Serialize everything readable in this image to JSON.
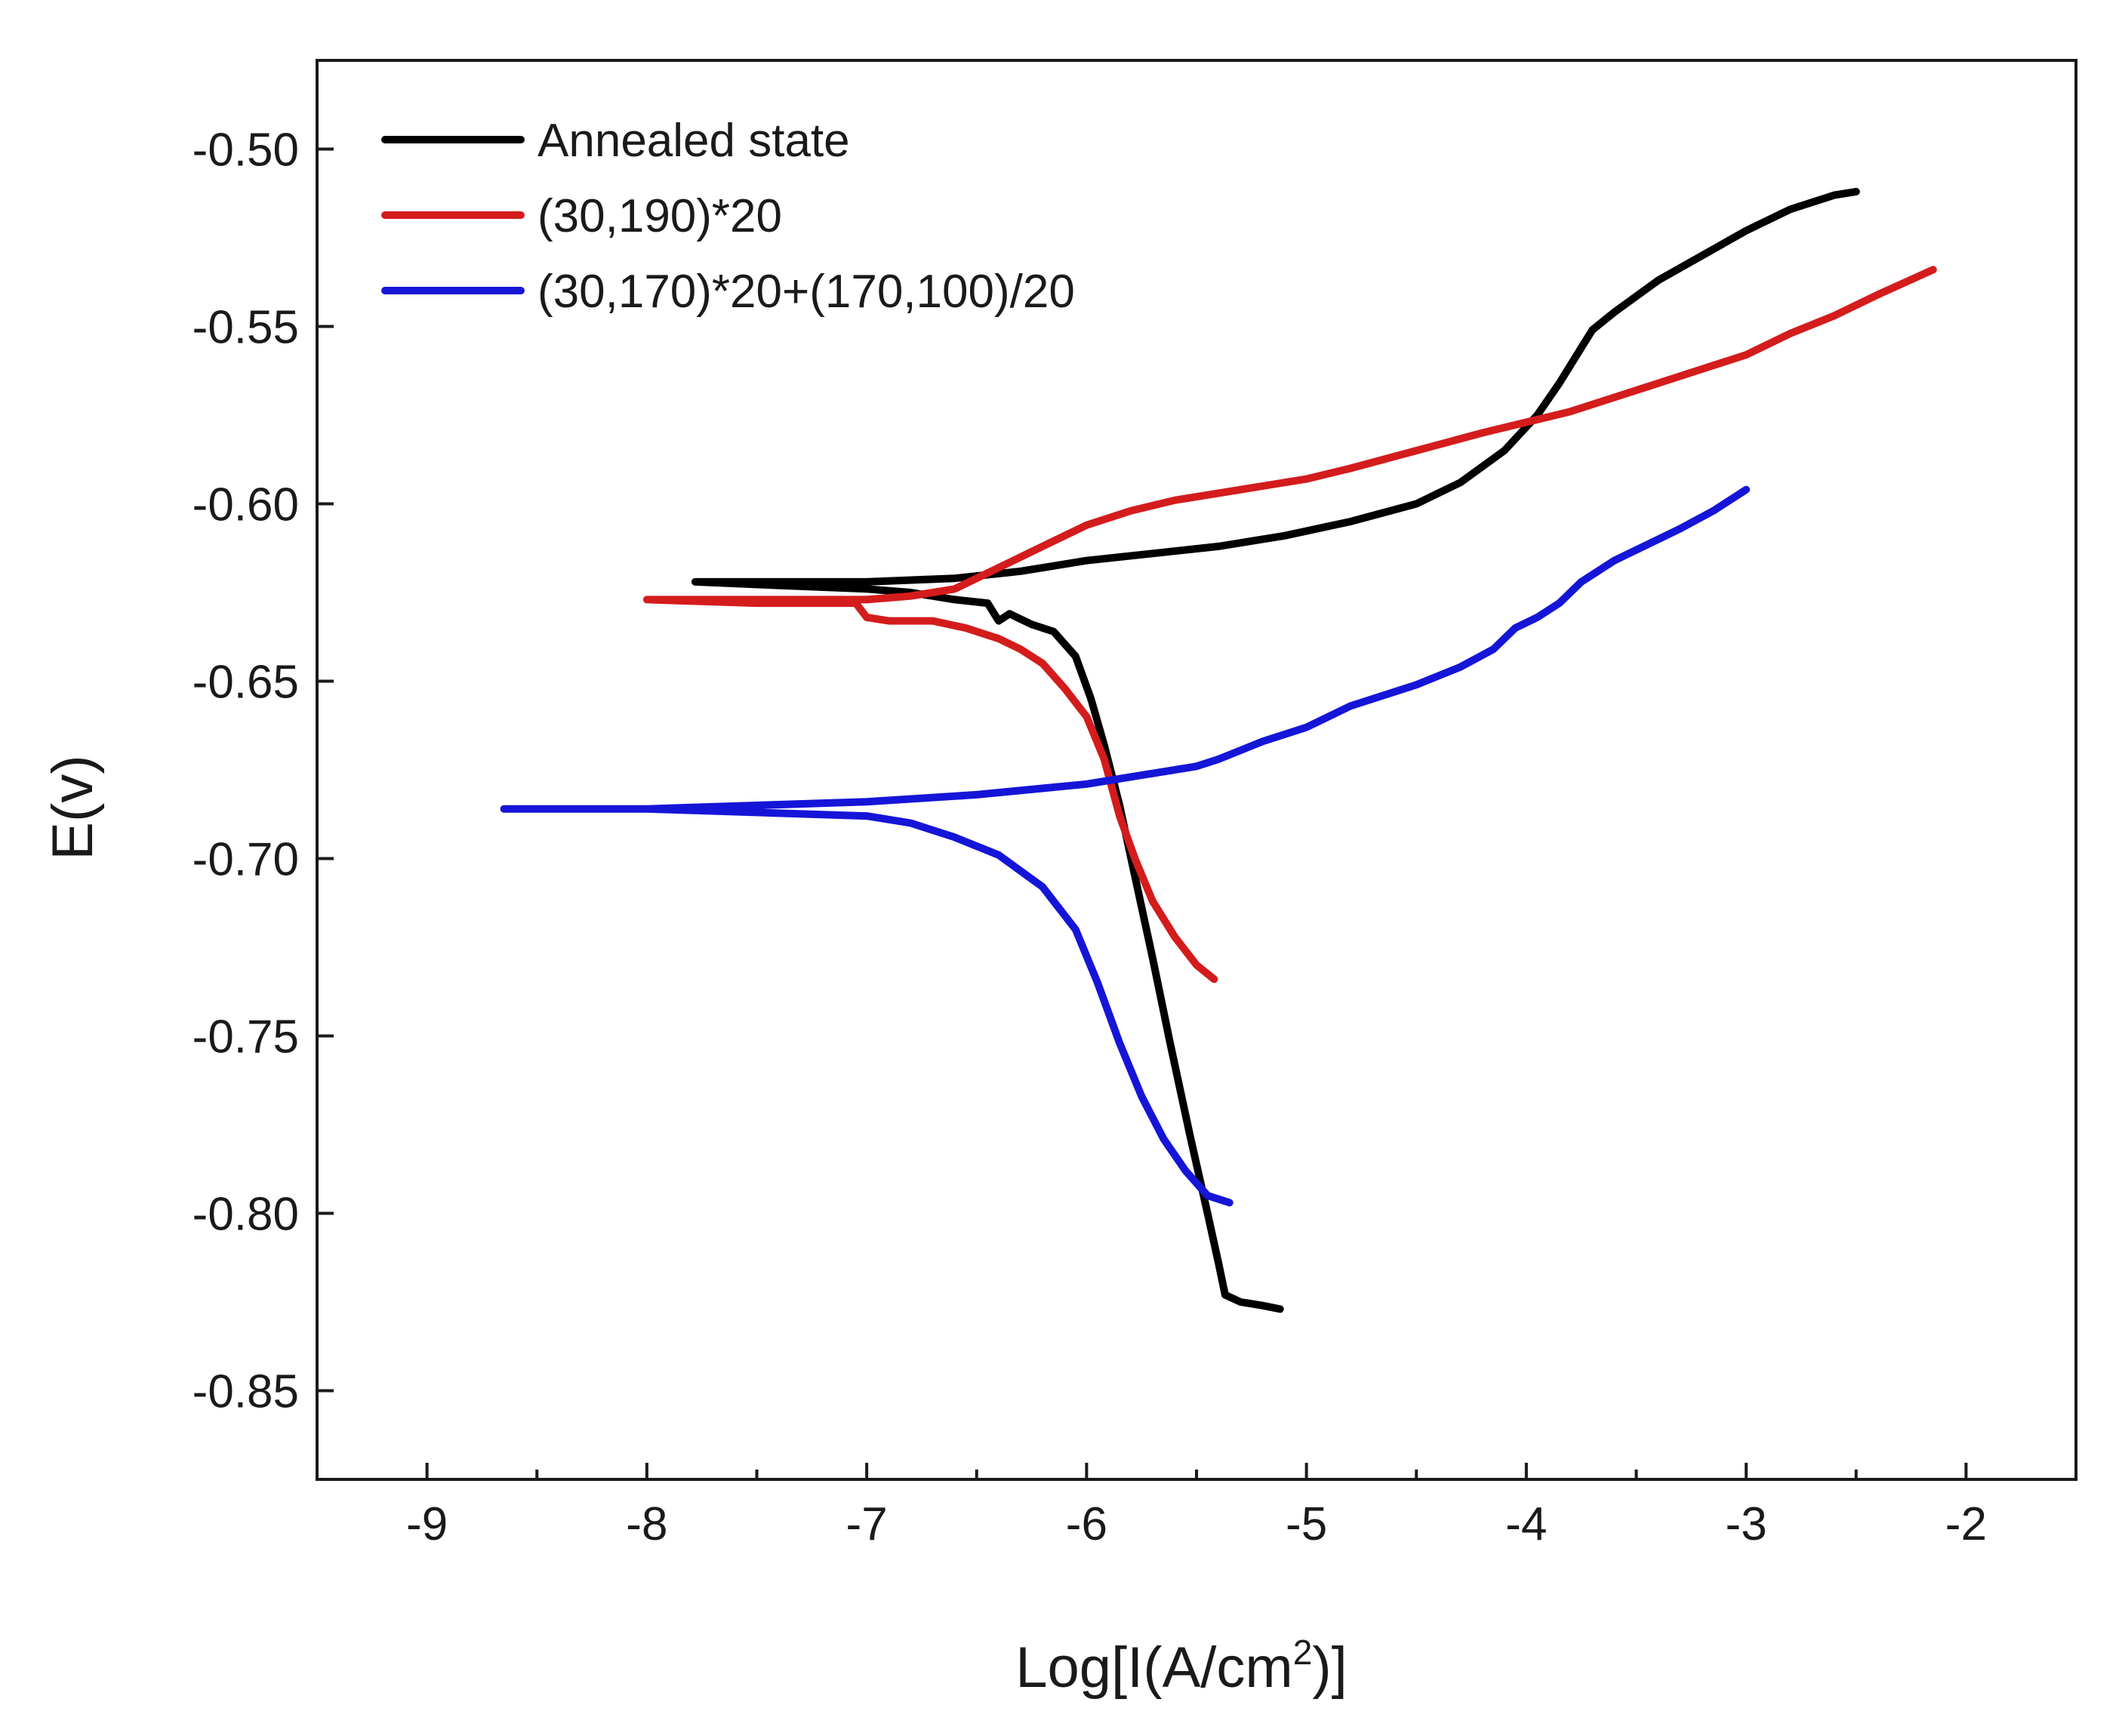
{
  "chart_data": {
    "type": "line",
    "title": "",
    "xlabel": "Log[I(A/cm²)]",
    "xlabel_parts": {
      "pre": "Log[I(A/cm",
      "sup": "2",
      "post": ")]"
    },
    "ylabel": "E(v)",
    "xlim": [
      -9.5,
      -1.5
    ],
    "ylim": [
      -0.875,
      -0.475
    ],
    "xticks": [
      -9,
      -8,
      -7,
      -6,
      -5,
      -4,
      -3,
      -2
    ],
    "xtick_labels": [
      "-9",
      "-8",
      "-7",
      "-6",
      "-5",
      "-4",
      "-3",
      "-2"
    ],
    "yticks": [
      -0.5,
      -0.55,
      -0.6,
      -0.65,
      -0.7,
      -0.75,
      -0.8,
      -0.85
    ],
    "ytick_labels": [
      "-0.50",
      "-0.55",
      "-0.60",
      "-0.65",
      "-0.70",
      "-0.75",
      "-0.80",
      "-0.85"
    ],
    "grid": false,
    "legend_position": "top-left",
    "series": [
      {
        "name": "Annealed state",
        "color": "#000000",
        "points": [
          [
            -7.78,
            -0.622
          ],
          [
            -7.5,
            -0.622
          ],
          [
            -7.0,
            -0.622
          ],
          [
            -6.6,
            -0.621
          ],
          [
            -6.3,
            -0.619
          ],
          [
            -6.0,
            -0.616
          ],
          [
            -5.7,
            -0.614
          ],
          [
            -5.4,
            -0.612
          ],
          [
            -5.1,
            -0.609
          ],
          [
            -4.8,
            -0.605
          ],
          [
            -4.5,
            -0.6
          ],
          [
            -4.3,
            -0.594
          ],
          [
            -4.1,
            -0.585
          ],
          [
            -3.95,
            -0.575
          ],
          [
            -3.85,
            -0.566
          ],
          [
            -3.78,
            -0.559
          ],
          [
            -3.7,
            -0.551
          ],
          [
            -3.6,
            -0.546
          ],
          [
            -3.4,
            -0.537
          ],
          [
            -3.2,
            -0.53
          ],
          [
            -3.0,
            -0.523
          ],
          [
            -2.8,
            -0.517
          ],
          [
            -2.6,
            -0.513
          ],
          [
            -2.5,
            -0.512
          ],
          [
            null,
            null
          ],
          [
            -7.78,
            -0.622
          ],
          [
            -7.4,
            -0.623
          ],
          [
            -7.0,
            -0.624
          ],
          [
            -6.8,
            -0.625
          ],
          [
            -6.6,
            -0.627
          ],
          [
            -6.45,
            -0.628
          ],
          [
            -6.4,
            -0.633
          ],
          [
            -6.35,
            -0.631
          ],
          [
            -6.25,
            -0.634
          ],
          [
            -6.15,
            -0.636
          ],
          [
            -6.05,
            -0.643
          ],
          [
            -5.98,
            -0.655
          ],
          [
            -5.92,
            -0.668
          ],
          [
            -5.85,
            -0.685
          ],
          [
            -5.78,
            -0.705
          ],
          [
            -5.7,
            -0.728
          ],
          [
            -5.62,
            -0.752
          ],
          [
            -5.53,
            -0.778
          ],
          [
            -5.45,
            -0.8
          ],
          [
            -5.4,
            -0.814
          ],
          [
            -5.37,
            -0.823
          ],
          [
            -5.3,
            -0.825
          ],
          [
            -5.2,
            -0.826
          ],
          [
            -5.12,
            -0.827
          ]
        ]
      },
      {
        "name": "(30,190)*20",
        "color": "#d41c1c",
        "points": [
          [
            -8.0,
            -0.627
          ],
          [
            -7.5,
            -0.627
          ],
          [
            -7.0,
            -0.627
          ],
          [
            -6.8,
            -0.626
          ],
          [
            -6.6,
            -0.624
          ],
          [
            -6.4,
            -0.618
          ],
          [
            -6.2,
            -0.612
          ],
          [
            -6.0,
            -0.606
          ],
          [
            -5.8,
            -0.602
          ],
          [
            -5.6,
            -0.599
          ],
          [
            -5.4,
            -0.597
          ],
          [
            -5.2,
            -0.595
          ],
          [
            -5.0,
            -0.593
          ],
          [
            -4.8,
            -0.59
          ],
          [
            -4.5,
            -0.585
          ],
          [
            -4.2,
            -0.58
          ],
          [
            -4.0,
            -0.577
          ],
          [
            -3.8,
            -0.574
          ],
          [
            -3.6,
            -0.57
          ],
          [
            -3.4,
            -0.566
          ],
          [
            -3.2,
            -0.562
          ],
          [
            -3.0,
            -0.558
          ],
          [
            -2.8,
            -0.552
          ],
          [
            -2.6,
            -0.547
          ],
          [
            -2.4,
            -0.541
          ],
          [
            -2.15,
            -0.534
          ],
          [
            null,
            null
          ],
          [
            -8.0,
            -0.627
          ],
          [
            -7.5,
            -0.628
          ],
          [
            -7.05,
            -0.628
          ],
          [
            -7.0,
            -0.632
          ],
          [
            -6.9,
            -0.633
          ],
          [
            -6.7,
            -0.633
          ],
          [
            -6.55,
            -0.635
          ],
          [
            -6.4,
            -0.638
          ],
          [
            -6.3,
            -0.641
          ],
          [
            -6.2,
            -0.645
          ],
          [
            -6.1,
            -0.652
          ],
          [
            -6.0,
            -0.66
          ],
          [
            -5.92,
            -0.672
          ],
          [
            -5.85,
            -0.688
          ],
          [
            -5.78,
            -0.7
          ],
          [
            -5.7,
            -0.712
          ],
          [
            -5.6,
            -0.722
          ],
          [
            -5.5,
            -0.73
          ],
          [
            -5.42,
            -0.734
          ]
        ]
      },
      {
        "name": "(30,170)*20+(170,100)/20",
        "color": "#1515d8",
        "points": [
          [
            -8.65,
            -0.686
          ],
          [
            -8.0,
            -0.686
          ],
          [
            -7.5,
            -0.685
          ],
          [
            -7.0,
            -0.684
          ],
          [
            -6.5,
            -0.682
          ],
          [
            -6.0,
            -0.679
          ],
          [
            -5.5,
            -0.674
          ],
          [
            -5.4,
            -0.672
          ],
          [
            -5.2,
            -0.667
          ],
          [
            -5.0,
            -0.663
          ],
          [
            -4.8,
            -0.657
          ],
          [
            -4.5,
            -0.651
          ],
          [
            -4.3,
            -0.646
          ],
          [
            -4.15,
            -0.641
          ],
          [
            -4.05,
            -0.635
          ],
          [
            -3.95,
            -0.632
          ],
          [
            -3.85,
            -0.628
          ],
          [
            -3.75,
            -0.622
          ],
          [
            -3.6,
            -0.616
          ],
          [
            -3.5,
            -0.613
          ],
          [
            -3.3,
            -0.607
          ],
          [
            -3.15,
            -0.602
          ],
          [
            -3.0,
            -0.596
          ],
          [
            null,
            null
          ],
          [
            -8.65,
            -0.686
          ],
          [
            -8.0,
            -0.686
          ],
          [
            -7.5,
            -0.687
          ],
          [
            -7.0,
            -0.688
          ],
          [
            -6.8,
            -0.69
          ],
          [
            -6.6,
            -0.694
          ],
          [
            -6.4,
            -0.699
          ],
          [
            -6.2,
            -0.708
          ],
          [
            -6.05,
            -0.72
          ],
          [
            -5.95,
            -0.735
          ],
          [
            -5.85,
            -0.752
          ],
          [
            -5.75,
            -0.767
          ],
          [
            -5.65,
            -0.779
          ],
          [
            -5.55,
            -0.788
          ],
          [
            -5.45,
            -0.795
          ],
          [
            -5.35,
            -0.797
          ]
        ]
      }
    ]
  }
}
